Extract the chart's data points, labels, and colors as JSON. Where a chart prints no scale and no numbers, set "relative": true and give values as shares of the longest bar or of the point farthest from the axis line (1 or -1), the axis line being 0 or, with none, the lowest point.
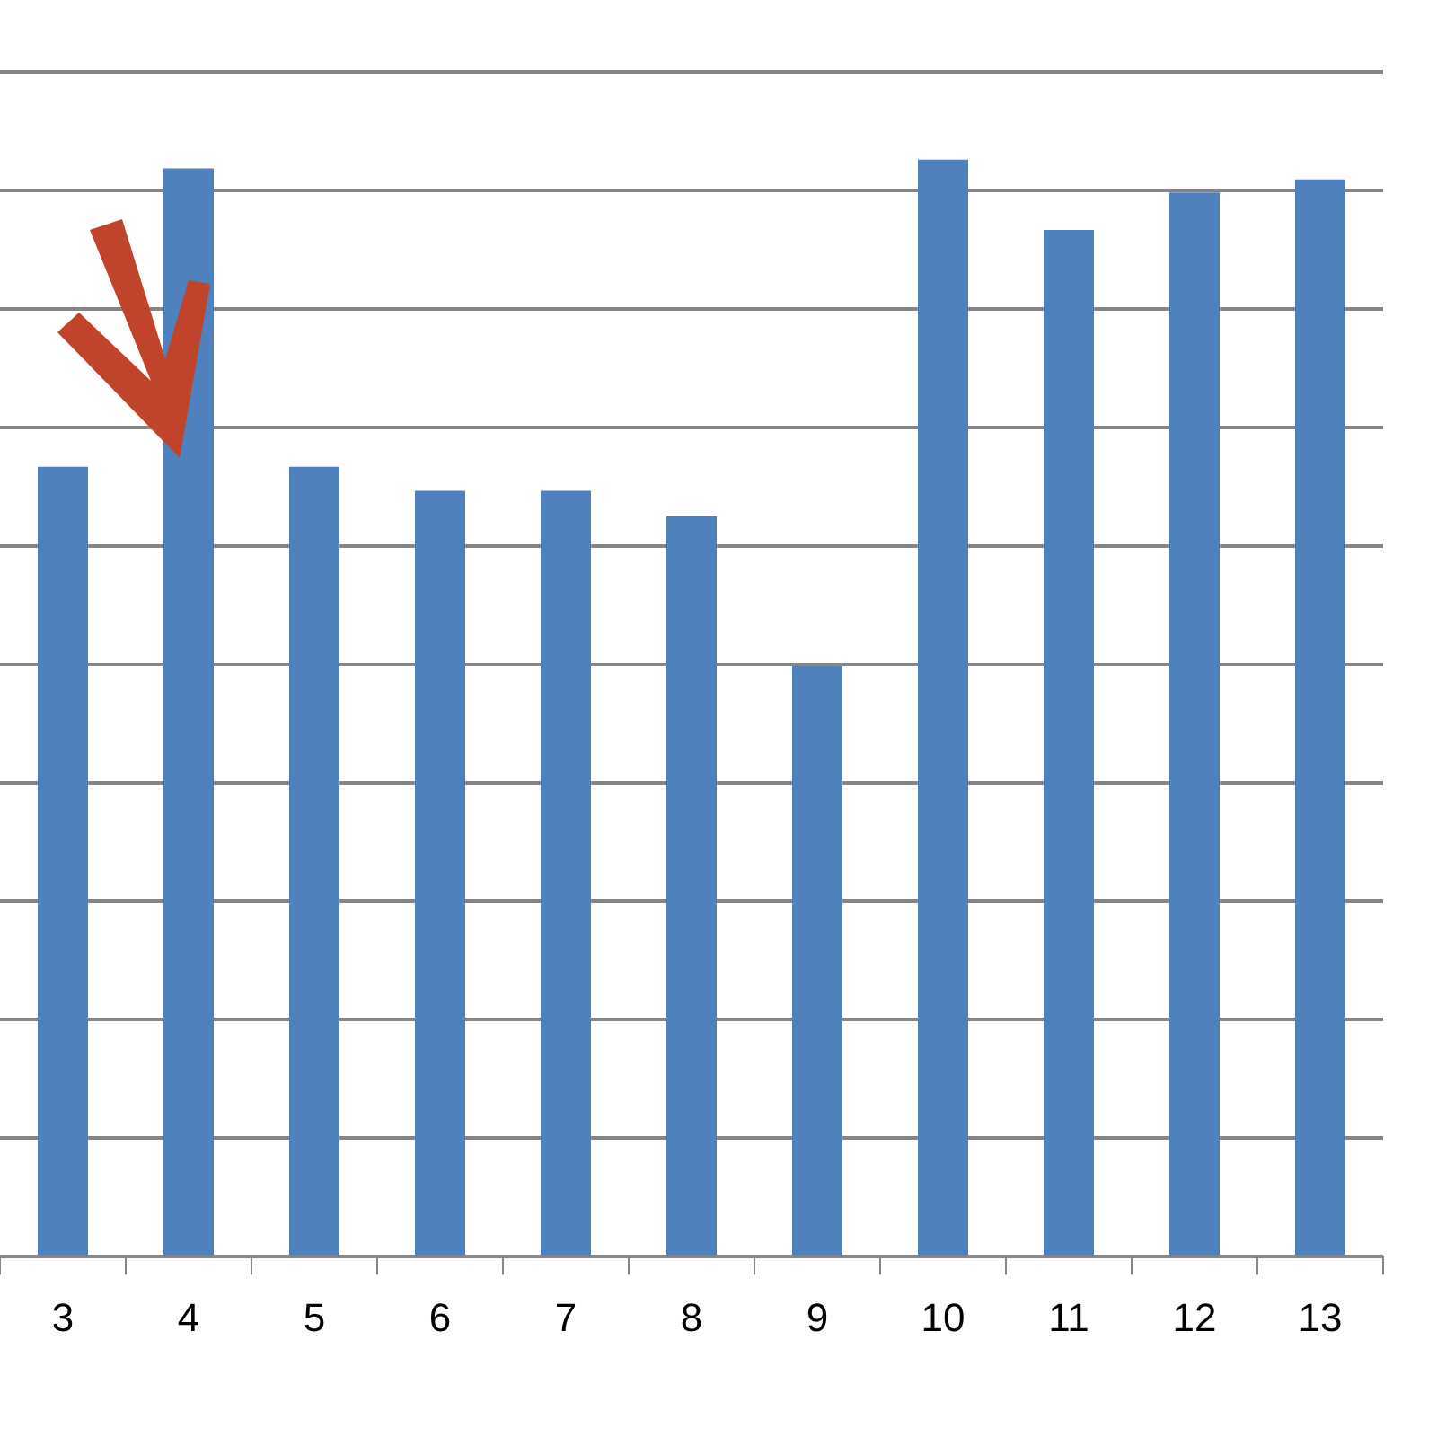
{
  "chart_data": {
    "type": "bar",
    "relative": true,
    "categories": [
      "3",
      "4",
      "5",
      "6",
      "7",
      "8",
      "9",
      "10",
      "11",
      "12",
      "13"
    ],
    "values": [
      0.72,
      0.992,
      0.72,
      0.698,
      0.698,
      0.675,
      0.538,
      1,
      0.936,
      0.97,
      0.982
    ],
    "color": "#4f81bd",
    "grid": "y",
    "legend": false
  }
}
